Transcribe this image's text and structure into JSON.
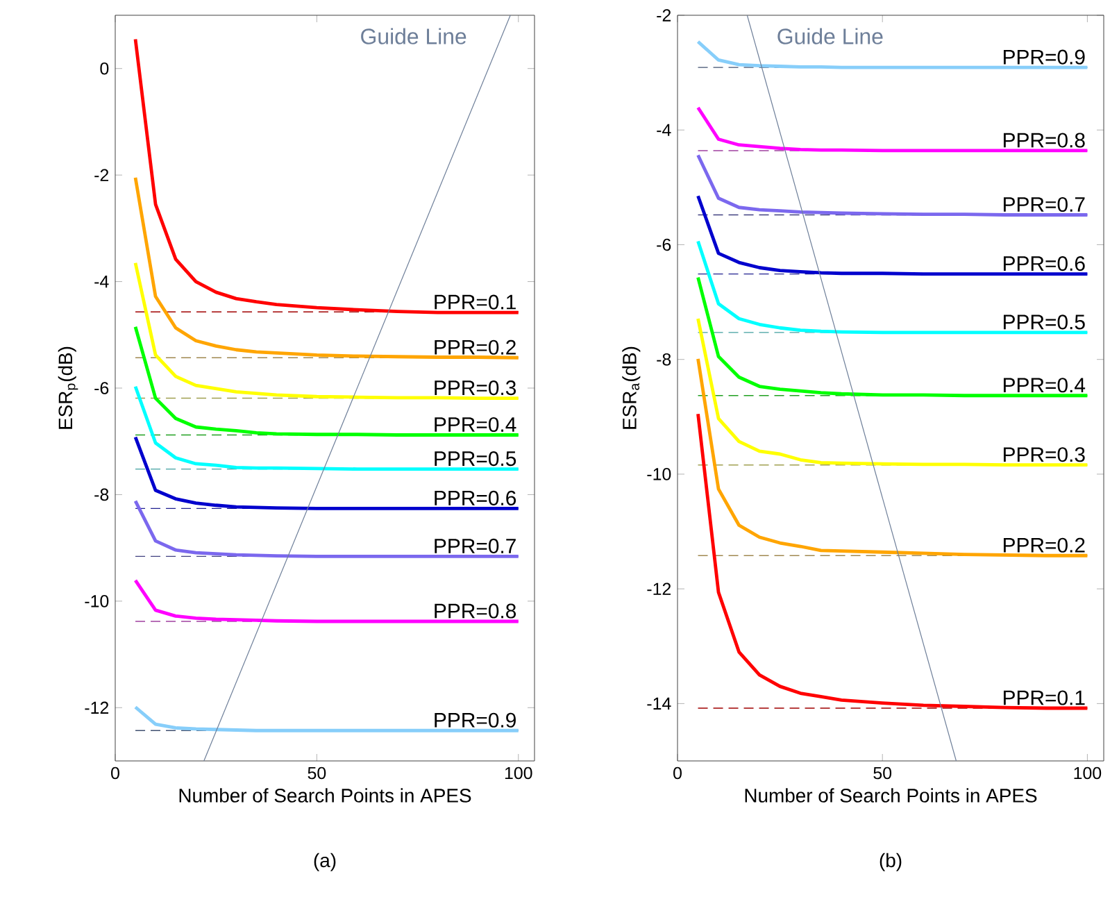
{
  "chart_data": [
    {
      "type": "line",
      "xlabel": "Number of Search Points in APES",
      "ylabel": "ESR$_{p}$(dB)",
      "annotations": [
        "(a)"
      ],
      "xlim": [
        0,
        104
      ],
      "ylim": [
        -13,
        1
      ],
      "xticks": [
        0,
        50,
        100
      ],
      "yticks": [
        -12,
        -10,
        -8,
        -6,
        -4,
        -2,
        0
      ],
      "x": [
        5,
        10,
        15,
        20,
        25,
        30,
        35,
        40,
        50,
        60,
        70,
        80,
        90,
        100
      ],
      "series": [
        {
          "name": "PPR=0.1",
          "color": "#ff0000",
          "values": [
            0.55,
            -2.55,
            -3.58,
            -4.0,
            -4.2,
            -4.32,
            -4.38,
            -4.43,
            -4.49,
            -4.53,
            -4.56,
            -4.58,
            -4.58,
            -4.58
          ]
        },
        {
          "name": "PPR=0.2",
          "color": "#ffa500",
          "values": [
            -2.05,
            -4.28,
            -4.87,
            -5.11,
            -5.21,
            -5.28,
            -5.32,
            -5.34,
            -5.38,
            -5.4,
            -5.41,
            -5.42,
            -5.42,
            -5.43
          ]
        },
        {
          "name": "PPR=0.3",
          "color": "#ffff00",
          "values": [
            -3.65,
            -5.38,
            -5.78,
            -5.95,
            -6.01,
            -6.07,
            -6.1,
            -6.13,
            -6.16,
            -6.17,
            -6.18,
            -6.18,
            -6.19,
            -6.19
          ]
        },
        {
          "name": "PPR=0.4",
          "color": "#00ff00",
          "values": [
            -4.85,
            -6.19,
            -6.57,
            -6.73,
            -6.77,
            -6.8,
            -6.84,
            -6.86,
            -6.87,
            -6.87,
            -6.88,
            -6.88,
            -6.88,
            -6.88
          ]
        },
        {
          "name": "PPR=0.5",
          "color": "#00ffff",
          "values": [
            -5.97,
            -7.03,
            -7.31,
            -7.42,
            -7.45,
            -7.49,
            -7.5,
            -7.5,
            -7.51,
            -7.52,
            -7.52,
            -7.52,
            -7.52,
            -7.52
          ]
        },
        {
          "name": "PPR=0.6",
          "color": "#0000cd",
          "values": [
            -6.92,
            -7.92,
            -8.08,
            -8.16,
            -8.2,
            -8.23,
            -8.24,
            -8.25,
            -8.26,
            -8.26,
            -8.26,
            -8.26,
            -8.26,
            -8.26
          ]
        },
        {
          "name": "PPR=0.7",
          "color": "#7b68ee",
          "values": [
            -8.12,
            -8.87,
            -9.04,
            -9.09,
            -9.11,
            -9.13,
            -9.14,
            -9.15,
            -9.16,
            -9.16,
            -9.16,
            -9.16,
            -9.16,
            -9.16
          ]
        },
        {
          "name": "PPR=0.8",
          "color": "#ff00ff",
          "values": [
            -9.61,
            -10.17,
            -10.28,
            -10.32,
            -10.34,
            -10.35,
            -10.36,
            -10.37,
            -10.38,
            -10.38,
            -10.38,
            -10.38,
            -10.38,
            -10.38
          ]
        },
        {
          "name": "PPR=0.9",
          "color": "#87cefa",
          "values": [
            -11.99,
            -12.31,
            -12.38,
            -12.4,
            -12.41,
            -12.42,
            -12.43,
            -12.43,
            -12.43,
            -12.43,
            -12.43,
            -12.43,
            -12.43,
            -12.43
          ]
        },
        {
          "name": "Guide Line",
          "type": "line",
          "color": "#6e7f99",
          "x": [
            22,
            98
          ],
          "values": [
            -13,
            1
          ]
        }
      ],
      "ref_lines": [
        {
          "axis": "y",
          "value": -4.57,
          "color": "#a00000",
          "line_style": "dashed"
        },
        {
          "axis": "y",
          "value": -5.43,
          "color": "#a08850",
          "line_style": "dashed"
        },
        {
          "axis": "y",
          "value": -6.19,
          "color": "#a0a050",
          "line_style": "dashed"
        },
        {
          "axis": "y",
          "value": -6.88,
          "color": "#20a020",
          "line_style": "dashed"
        },
        {
          "axis": "y",
          "value": -7.52,
          "color": "#40a0a0",
          "line_style": "dashed"
        },
        {
          "axis": "y",
          "value": -8.26,
          "color": "#202090",
          "line_style": "dashed"
        },
        {
          "axis": "y",
          "value": -9.16,
          "color": "#404080",
          "line_style": "dashed"
        },
        {
          "axis": "y",
          "value": -10.38,
          "color": "#a040a0",
          "line_style": "dashed"
        },
        {
          "axis": "y",
          "value": -12.43,
          "color": "#405070",
          "line_style": "dashed"
        }
      ]
    },
    {
      "type": "line",
      "xlabel": "Number of Search Points in APES",
      "ylabel": "ESR$_{a}$(dB)",
      "annotations": [
        "(b)"
      ],
      "xlim": [
        0,
        104
      ],
      "ylim": [
        -15,
        -2
      ],
      "xticks": [
        0,
        50,
        100
      ],
      "yticks": [
        -14,
        -12,
        -10,
        -8,
        -6,
        -4,
        -2
      ],
      "x": [
        5,
        10,
        15,
        20,
        25,
        30,
        35,
        40,
        50,
        60,
        70,
        80,
        90,
        100
      ],
      "series": [
        {
          "name": "PPR=0.1",
          "color": "#ff0000",
          "values": [
            -8.95,
            -12.06,
            -13.1,
            -13.5,
            -13.7,
            -13.82,
            -13.88,
            -13.94,
            -13.99,
            -14.03,
            -14.05,
            -14.07,
            -14.08,
            -14.08
          ]
        },
        {
          "name": "PPR=0.2",
          "color": "#ffa500",
          "values": [
            -7.99,
            -10.26,
            -10.89,
            -11.1,
            -11.2,
            -11.26,
            -11.33,
            -11.34,
            -11.36,
            -11.38,
            -11.4,
            -11.41,
            -11.42,
            -11.42
          ]
        },
        {
          "name": "PPR=0.3",
          "color": "#ffff00",
          "values": [
            -7.29,
            -9.03,
            -9.43,
            -9.6,
            -9.65,
            -9.75,
            -9.8,
            -9.81,
            -9.82,
            -9.83,
            -9.83,
            -9.84,
            -9.84,
            -9.84
          ]
        },
        {
          "name": "PPR=0.4",
          "color": "#00ff00",
          "values": [
            -6.57,
            -7.95,
            -8.31,
            -8.47,
            -8.52,
            -8.55,
            -8.58,
            -8.6,
            -8.62,
            -8.62,
            -8.63,
            -8.63,
            -8.63,
            -8.63
          ]
        },
        {
          "name": "PPR=0.5",
          "color": "#00ffff",
          "values": [
            -5.94,
            -7.03,
            -7.29,
            -7.39,
            -7.45,
            -7.49,
            -7.51,
            -7.52,
            -7.53,
            -7.53,
            -7.53,
            -7.53,
            -7.53,
            -7.53
          ]
        },
        {
          "name": "PPR=0.6",
          "color": "#0000cd",
          "values": [
            -5.15,
            -6.15,
            -6.31,
            -6.4,
            -6.45,
            -6.47,
            -6.49,
            -6.5,
            -6.5,
            -6.51,
            -6.51,
            -6.51,
            -6.51,
            -6.51
          ]
        },
        {
          "name": "PPR=0.7",
          "color": "#7b68ee",
          "values": [
            -4.44,
            -5.19,
            -5.35,
            -5.39,
            -5.41,
            -5.43,
            -5.44,
            -5.45,
            -5.46,
            -5.47,
            -5.47,
            -5.48,
            -5.48,
            -5.48
          ]
        },
        {
          "name": "PPR=0.8",
          "color": "#ff00ff",
          "values": [
            -3.61,
            -4.16,
            -4.26,
            -4.29,
            -4.32,
            -4.34,
            -4.35,
            -4.35,
            -4.36,
            -4.36,
            -4.36,
            -4.36,
            -4.36,
            -4.36
          ]
        },
        {
          "name": "PPR=0.9",
          "color": "#87cefa",
          "values": [
            -2.46,
            -2.78,
            -2.86,
            -2.88,
            -2.89,
            -2.9,
            -2.9,
            -2.91,
            -2.91,
            -2.91,
            -2.91,
            -2.91,
            -2.91,
            -2.91
          ]
        },
        {
          "name": "Guide Line",
          "type": "line",
          "color": "#6e7f99",
          "x": [
            17,
            68
          ],
          "values": [
            -2,
            -15
          ]
        }
      ],
      "ref_lines": [
        {
          "axis": "y",
          "value": -14.08,
          "color": "#a00000",
          "line_style": "dashed"
        },
        {
          "axis": "y",
          "value": -11.42,
          "color": "#a08850",
          "line_style": "dashed"
        },
        {
          "axis": "y",
          "value": -9.84,
          "color": "#a0a050",
          "line_style": "dashed"
        },
        {
          "axis": "y",
          "value": -8.63,
          "color": "#20a020",
          "line_style": "dashed"
        },
        {
          "axis": "y",
          "value": -7.53,
          "color": "#40a0a0",
          "line_style": "dashed"
        },
        {
          "axis": "y",
          "value": -6.51,
          "color": "#202090",
          "line_style": "dashed"
        },
        {
          "axis": "y",
          "value": -5.48,
          "color": "#404080",
          "line_style": "dashed"
        },
        {
          "axis": "y",
          "value": -4.36,
          "color": "#a040a0",
          "line_style": "dashed"
        },
        {
          "axis": "y",
          "value": -2.91,
          "color": "#405070",
          "line_style": "dashed"
        }
      ]
    }
  ]
}
